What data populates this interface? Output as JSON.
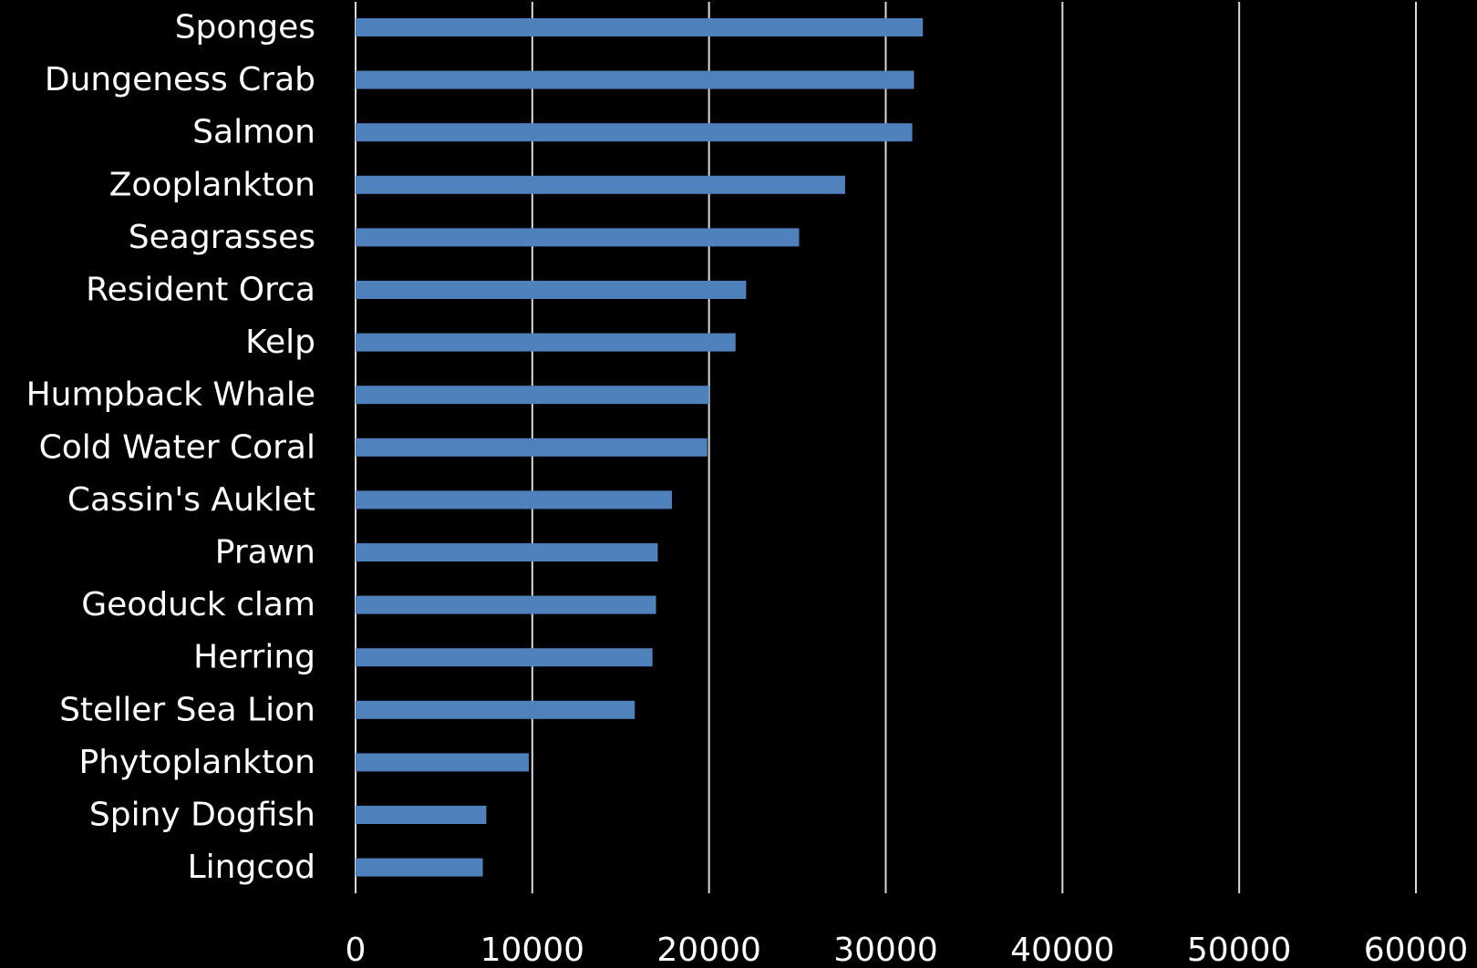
{
  "chart_data": {
    "type": "bar",
    "orientation": "horizontal",
    "title": "",
    "xlabel": "",
    "ylabel": "",
    "categories": [
      "Sponges",
      "Dungeness Crab",
      "Salmon",
      "Zooplankton",
      "Seagrasses",
      "Resident Orca",
      "Kelp",
      "Humpback Whale",
      "Cold Water Coral",
      "Cassin's Auklet",
      "Prawn",
      "Geoduck clam",
      "Herring",
      "Steller Sea Lion",
      "Phytoplankton",
      "Spiny Dogfish",
      "Lingcod"
    ],
    "values": [
      32100,
      31600,
      31500,
      27700,
      25100,
      22100,
      21500,
      20000,
      19900,
      17900,
      17100,
      17000,
      16800,
      15800,
      9800,
      7400,
      7200
    ],
    "xlim": [
      0,
      60000
    ],
    "xticks": [
      "0",
      "10000",
      "20000",
      "30000",
      "40000",
      "50000",
      "60000"
    ],
    "grid": "vertical",
    "legend": "none",
    "colors": {
      "background": "#000000",
      "bar": "#4f81bd",
      "gridline": "#d9d9d9",
      "text": "#ffffff"
    }
  }
}
